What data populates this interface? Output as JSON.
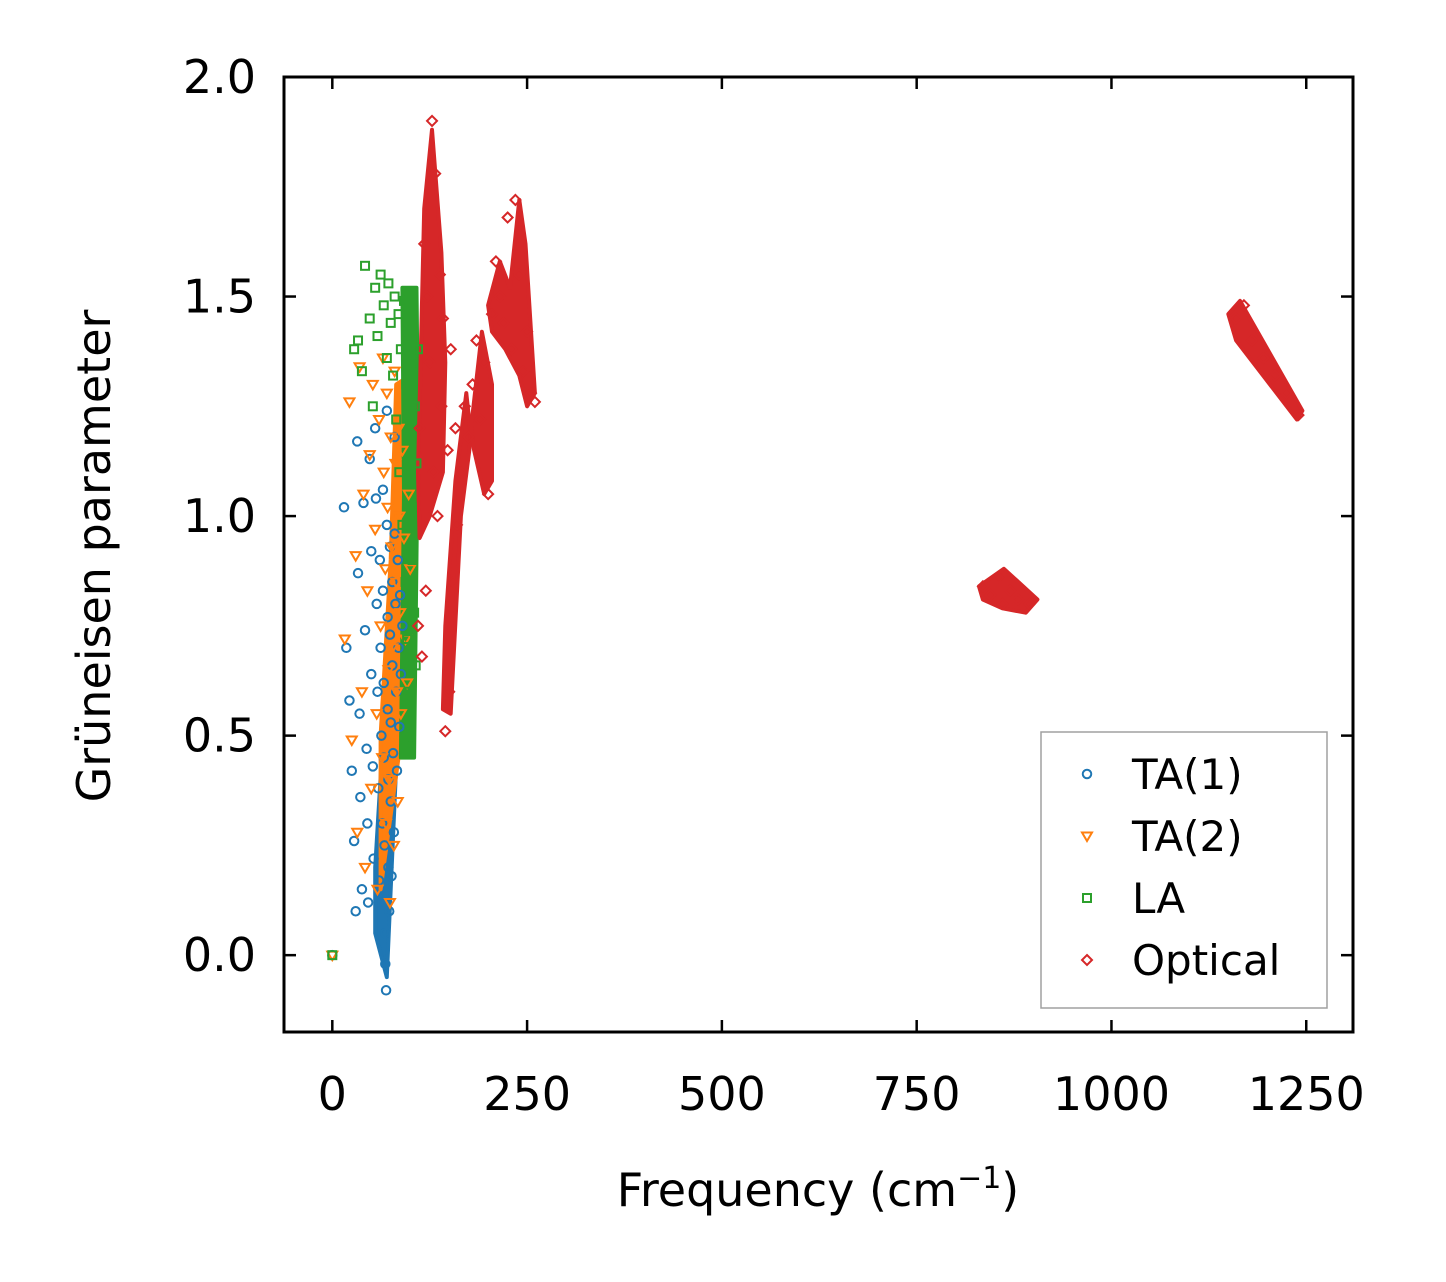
{
  "chart_data": {
    "type": "scatter",
    "title": "",
    "xlabel": "Frequency (cm",
    "xlabel_sup": "−1",
    "xlabel_close": ")",
    "ylabel": "Grüneisen parameter",
    "xlim": [
      -62,
      1310
    ],
    "ylim": [
      -0.175,
      2.0
    ],
    "xticks": [
      0,
      250,
      500,
      750,
      1000,
      1250
    ],
    "xtick_labels": [
      "0",
      "250",
      "500",
      "750",
      "1000",
      "1250"
    ],
    "yticks": [
      0.0,
      0.5,
      1.0,
      1.5,
      2.0
    ],
    "ytick_labels": [
      "0.0",
      "0.5",
      "1.0",
      "1.5",
      "2.0"
    ],
    "grid": false,
    "legend_position": "bottom-right",
    "series": [
      {
        "name": "TA(1)",
        "marker": "circle",
        "color": "#1f77b4",
        "points": [
          [
            0,
            0
          ],
          [
            15,
            1.02
          ],
          [
            18,
            0.7
          ],
          [
            22,
            0.58
          ],
          [
            25,
            0.42
          ],
          [
            28,
            0.26
          ],
          [
            30,
            0.1
          ],
          [
            32,
            1.17
          ],
          [
            33,
            0.87
          ],
          [
            35,
            0.55
          ],
          [
            36,
            0.36
          ],
          [
            38,
            0.15
          ],
          [
            40,
            1.03
          ],
          [
            42,
            0.74
          ],
          [
            44,
            0.47
          ],
          [
            45,
            0.3
          ],
          [
            46,
            0.12
          ],
          [
            48,
            1.13
          ],
          [
            50,
            0.92
          ],
          [
            50,
            0.64
          ],
          [
            52,
            0.43
          ],
          [
            53,
            0.22
          ],
          [
            55,
            1.2
          ],
          [
            56,
            1.04
          ],
          [
            57,
            0.8
          ],
          [
            58,
            0.6
          ],
          [
            59,
            0.38
          ],
          [
            60,
            0.17
          ],
          [
            61,
            0.9
          ],
          [
            62,
            0.7
          ],
          [
            63,
            0.5
          ],
          [
            64,
            0.3
          ],
          [
            65,
            1.06
          ],
          [
            65,
            0.83
          ],
          [
            66,
            0.62
          ],
          [
            66,
            0.45
          ],
          [
            67,
            0.25
          ],
          [
            68,
            0.05
          ],
          [
            68,
            -0.02
          ],
          [
            69,
            -0.08
          ],
          [
            70,
            1.24
          ],
          [
            70,
            0.98
          ],
          [
            71,
            0.77
          ],
          [
            71,
            0.56
          ],
          [
            72,
            0.4
          ],
          [
            72,
            0.2
          ],
          [
            73,
            0.1
          ],
          [
            74,
            0.93
          ],
          [
            74,
            0.73
          ],
          [
            75,
            0.53
          ],
          [
            75,
            0.35
          ],
          [
            76,
            0.18
          ],
          [
            77,
            0.85
          ],
          [
            77,
            0.66
          ],
          [
            78,
            0.46
          ],
          [
            79,
            0.28
          ],
          [
            80,
            1.18
          ],
          [
            80,
            0.96
          ],
          [
            81,
            0.8
          ],
          [
            82,
            0.6
          ],
          [
            83,
            0.42
          ],
          [
            84,
            0.9
          ],
          [
            85,
            0.7
          ],
          [
            86,
            0.52
          ],
          [
            87,
            0.82
          ],
          [
            88,
            0.64
          ],
          [
            90,
            0.75
          ]
        ]
      },
      {
        "name": "TA(2)",
        "marker": "triangle",
        "color": "#ff7f0e",
        "points": [
          [
            0,
            0
          ],
          [
            16,
            0.72
          ],
          [
            22,
            1.26
          ],
          [
            25,
            0.49
          ],
          [
            30,
            0.91
          ],
          [
            32,
            0.28
          ],
          [
            35,
            1.34
          ],
          [
            38,
            0.6
          ],
          [
            40,
            1.05
          ],
          [
            42,
            0.2
          ],
          [
            45,
            0.83
          ],
          [
            48,
            1.14
          ],
          [
            50,
            0.38
          ],
          [
            52,
            1.3
          ],
          [
            55,
            0.97
          ],
          [
            57,
            0.55
          ],
          [
            58,
            0.15
          ],
          [
            60,
            1.22
          ],
          [
            62,
            0.75
          ],
          [
            64,
            0.45
          ],
          [
            65,
            1.36
          ],
          [
            66,
            1.1
          ],
          [
            68,
            0.88
          ],
          [
            69,
            0.3
          ],
          [
            70,
            1.28
          ],
          [
            71,
            1.02
          ],
          [
            72,
            0.65
          ],
          [
            73,
            0.4
          ],
          [
            74,
            0.12
          ],
          [
            75,
            1.18
          ],
          [
            76,
            0.93
          ],
          [
            77,
            0.7
          ],
          [
            78,
            0.5
          ],
          [
            79,
            0.25
          ],
          [
            80,
            1.33
          ],
          [
            81,
            1.12
          ],
          [
            82,
            0.85
          ],
          [
            83,
            0.6
          ],
          [
            84,
            0.35
          ],
          [
            85,
            1.2
          ],
          [
            86,
            1.0
          ],
          [
            87,
            0.78
          ],
          [
            88,
            0.55
          ],
          [
            90,
            1.15
          ],
          [
            92,
            0.95
          ],
          [
            94,
            0.72
          ],
          [
            96,
            0.62
          ],
          [
            98,
            1.05
          ],
          [
            100,
            0.88
          ]
        ]
      },
      {
        "name": "LA",
        "marker": "square",
        "color": "#2ca02c",
        "points": [
          [
            0,
            0
          ],
          [
            28,
            1.38
          ],
          [
            33,
            1.4
          ],
          [
            38,
            1.33
          ],
          [
            42,
            1.57
          ],
          [
            48,
            1.45
          ],
          [
            52,
            1.25
          ],
          [
            55,
            1.52
          ],
          [
            58,
            1.41
          ],
          [
            62,
            1.55
          ],
          [
            66,
            1.48
          ],
          [
            70,
            1.36
          ],
          [
            72,
            1.53
          ],
          [
            75,
            1.44
          ],
          [
            78,
            1.32
          ],
          [
            80,
            1.5
          ],
          [
            82,
            1.22
          ],
          [
            85,
            1.46
          ],
          [
            86,
            1.1
          ],
          [
            88,
            1.38
          ],
          [
            90,
            0.98
          ],
          [
            92,
            1.49
          ],
          [
            94,
            0.85
          ],
          [
            95,
            1.3
          ],
          [
            96,
            0.72
          ],
          [
            98,
            1.42
          ],
          [
            99,
            0.6
          ],
          [
            100,
            1.18
          ],
          [
            101,
            0.48
          ],
          [
            102,
            1.02
          ],
          [
            103,
            0.9
          ],
          [
            104,
            1.35
          ],
          [
            105,
            0.78
          ],
          [
            106,
            1.25
          ],
          [
            107,
            0.66
          ],
          [
            108,
            1.12
          ],
          [
            110,
            1.38
          ]
        ]
      },
      {
        "name": "Optical",
        "marker": "diamond",
        "color": "#d62728",
        "points": [
          [
            110,
            0.75
          ],
          [
            112,
            1.2
          ],
          [
            115,
            0.68
          ],
          [
            118,
            1.62
          ],
          [
            120,
            0.83
          ],
          [
            122,
            1.5
          ],
          [
            125,
            1.35
          ],
          [
            128,
            1.9
          ],
          [
            130,
            1.1
          ],
          [
            132,
            1.78
          ],
          [
            135,
            1.0
          ],
          [
            138,
            1.55
          ],
          [
            140,
            1.25
          ],
          [
            142,
            1.45
          ],
          [
            145,
            0.51
          ],
          [
            148,
            1.15
          ],
          [
            150,
            0.6
          ],
          [
            152,
            1.38
          ],
          [
            155,
            0.85
          ],
          [
            158,
            1.2
          ],
          [
            160,
            0.98
          ],
          [
            165,
            1.1
          ],
          [
            170,
            1.25
          ],
          [
            175,
            1.18
          ],
          [
            180,
            1.3
          ],
          [
            185,
            1.4
          ],
          [
            190,
            1.22
          ],
          [
            195,
            1.35
          ],
          [
            200,
            1.05
          ],
          [
            205,
            1.46
          ],
          [
            210,
            1.58
          ],
          [
            215,
            1.5
          ],
          [
            220,
            1.44
          ],
          [
            225,
            1.68
          ],
          [
            230,
            1.38
          ],
          [
            235,
            1.72
          ],
          [
            240,
            1.55
          ],
          [
            245,
            1.33
          ],
          [
            250,
            1.42
          ],
          [
            255,
            1.28
          ],
          [
            260,
            1.26
          ],
          [
            835,
            0.84
          ],
          [
            845,
            0.82
          ],
          [
            855,
            0.86
          ],
          [
            860,
            0.8
          ],
          [
            870,
            0.83
          ],
          [
            880,
            0.81
          ],
          [
            895,
            0.8
          ],
          [
            1160,
            1.45
          ],
          [
            1170,
            1.48
          ],
          [
            1180,
            1.4
          ],
          [
            1195,
            1.36
          ],
          [
            1210,
            1.32
          ],
          [
            1225,
            1.28
          ],
          [
            1240,
            1.23
          ]
        ]
      }
    ],
    "regions": [
      {
        "series": "TA(1)",
        "color": "#1f77b4",
        "poly": [
          [
            55,
            0.05
          ],
          [
            70,
            -0.05
          ],
          [
            85,
            0.55
          ],
          [
            95,
            0.88
          ],
          [
            88,
            1.05
          ],
          [
            72,
            0.7
          ],
          [
            55,
            0.2
          ]
        ]
      },
      {
        "series": "TA(2)",
        "color": "#ff7f0e",
        "poly": [
          [
            62,
            0.15
          ],
          [
            85,
            0.45
          ],
          [
            100,
            0.95
          ],
          [
            100,
            1.32
          ],
          [
            82,
            1.3
          ],
          [
            75,
            0.9
          ],
          [
            62,
            0.5
          ]
        ]
      },
      {
        "series": "LA",
        "color": "#2ca02c",
        "poly": [
          [
            88,
            0.45
          ],
          [
            105,
            0.45
          ],
          [
            110,
            1.2
          ],
          [
            108,
            1.52
          ],
          [
            90,
            1.52
          ],
          [
            92,
            1.05
          ]
        ]
      },
      {
        "series": "Optical",
        "color": "#d62728",
        "poly": [
          [
            110,
            1.1
          ],
          [
            118,
            1.7
          ],
          [
            128,
            1.88
          ],
          [
            140,
            1.6
          ],
          [
            145,
            1.35
          ],
          [
            142,
            1.1
          ],
          [
            125,
            1.0
          ],
          [
            112,
            0.95
          ]
        ]
      },
      {
        "series": "Optical",
        "color": "#d62728",
        "poly": [
          [
            142,
            0.56
          ],
          [
            152,
            0.55
          ],
          [
            165,
            1.0
          ],
          [
            178,
            1.18
          ],
          [
            172,
            1.28
          ],
          [
            158,
            1.08
          ],
          [
            145,
            0.75
          ]
        ]
      },
      {
        "series": "Optical",
        "color": "#d62728",
        "poly": [
          [
            178,
            1.2
          ],
          [
            192,
            1.42
          ],
          [
            205,
            1.3
          ],
          [
            205,
            1.08
          ],
          [
            195,
            1.05
          ],
          [
            182,
            1.15
          ]
        ]
      },
      {
        "series": "Optical",
        "color": "#d62728",
        "poly": [
          [
            200,
            1.48
          ],
          [
            215,
            1.58
          ],
          [
            228,
            1.52
          ],
          [
            240,
            1.72
          ],
          [
            248,
            1.62
          ],
          [
            260,
            1.28
          ],
          [
            250,
            1.25
          ],
          [
            240,
            1.32
          ],
          [
            222,
            1.38
          ],
          [
            205,
            1.42
          ]
        ]
      },
      {
        "series": "Optical",
        "color": "#d62728",
        "poly": [
          [
            830,
            0.84
          ],
          [
            862,
            0.88
          ],
          [
            905,
            0.81
          ],
          [
            890,
            0.78
          ],
          [
            860,
            0.79
          ],
          [
            835,
            0.81
          ]
        ]
      },
      {
        "series": "Optical",
        "color": "#d62728",
        "poly": [
          [
            1150,
            1.46
          ],
          [
            1165,
            1.49
          ],
          [
            1245,
            1.24
          ],
          [
            1238,
            1.22
          ],
          [
            1160,
            1.4
          ]
        ]
      }
    ]
  }
}
